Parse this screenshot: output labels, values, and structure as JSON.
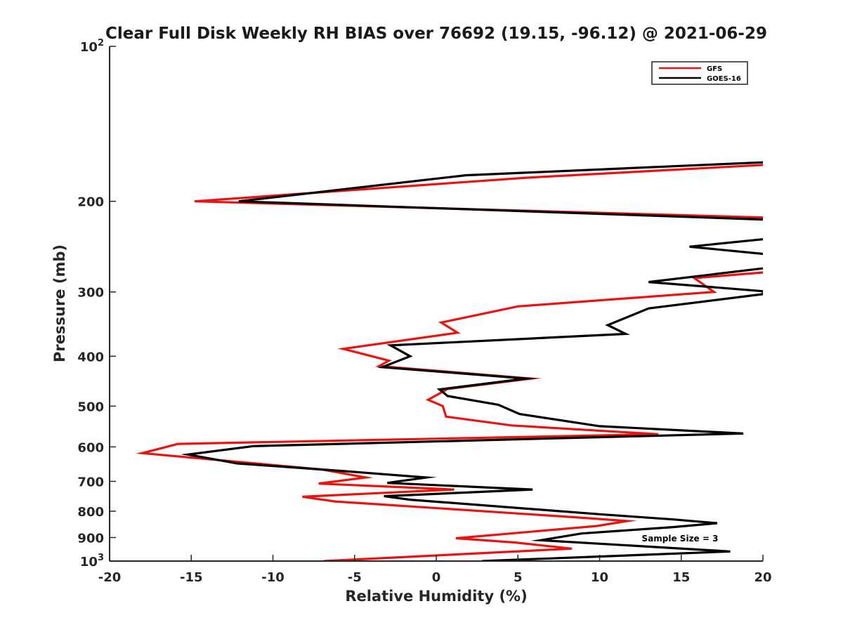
{
  "chart_data": {
    "type": "line",
    "title": "Clear Full Disk Weekly RH BIAS over 76692 (19.15, -96.12) @ 2021-06-29",
    "xlabel": "Relative Humidity (%)",
    "ylabel": "Pressure (mb)",
    "xlim": [
      -20,
      20
    ],
    "ylim": [
      100,
      1000
    ],
    "y_scale": "log",
    "y_direction": "reversed",
    "x_ticks": [
      {
        "value": -20,
        "label": "-20"
      },
      {
        "value": -15,
        "label": "-15"
      },
      {
        "value": -10,
        "label": "-10"
      },
      {
        "value": -5,
        "label": "-5"
      },
      {
        "value": 0,
        "label": "0"
      },
      {
        "value": 5,
        "label": "5"
      },
      {
        "value": 10,
        "label": "10"
      },
      {
        "value": 15,
        "label": "15"
      },
      {
        "value": 20,
        "label": "20"
      }
    ],
    "y_ticks": [
      {
        "value": 100,
        "base": "10",
        "exp": "2"
      },
      {
        "value": 200,
        "label": "200"
      },
      {
        "value": 300,
        "label": "300"
      },
      {
        "value": 400,
        "label": "400"
      },
      {
        "value": 500,
        "label": "500"
      },
      {
        "value": 600,
        "label": "600"
      },
      {
        "value": 700,
        "label": "700"
      },
      {
        "value": 800,
        "label": "800"
      },
      {
        "value": 900,
        "label": "900"
      },
      {
        "value": 1000,
        "base": "10",
        "exp": "3"
      }
    ],
    "legend": {
      "position": "top-right",
      "entries": [
        "GFS",
        "GOES-16"
      ]
    },
    "annotation": "Sample Size = 3",
    "series": [
      {
        "name": "GFS",
        "color": "#e8140f",
        "segments": [
          [
            {
              "x": 20.0,
              "p": 170
            },
            {
              "x": 5.5,
              "p": 180
            },
            {
              "x": -14.8,
              "p": 200
            },
            {
              "x": 20.0,
              "p": 215
            }
          ],
          [
            {
              "x": 20.0,
              "p": 275
            },
            {
              "x": 15.8,
              "p": 282
            },
            {
              "x": 17.0,
              "p": 300
            },
            {
              "x": 5.0,
              "p": 320
            },
            {
              "x": 0.3,
              "p": 344
            },
            {
              "x": 1.3,
              "p": 360
            },
            {
              "x": -5.7,
              "p": 387
            },
            {
              "x": -2.9,
              "p": 408
            },
            {
              "x": -3.5,
              "p": 418
            },
            {
              "x": 5.8,
              "p": 442
            },
            {
              "x": 0.7,
              "p": 463
            },
            {
              "x": -0.5,
              "p": 486
            },
            {
              "x": 0.4,
              "p": 500
            },
            {
              "x": 0.6,
              "p": 524
            },
            {
              "x": 4.6,
              "p": 545
            },
            {
              "x": 13.6,
              "p": 567
            },
            {
              "x": -15.8,
              "p": 592
            },
            {
              "x": -18.0,
              "p": 617
            },
            {
              "x": -7.0,
              "p": 664
            },
            {
              "x": -4.3,
              "p": 688
            },
            {
              "x": -7.2,
              "p": 707
            },
            {
              "x": 1.1,
              "p": 726
            },
            {
              "x": -8.2,
              "p": 750
            },
            {
              "x": -6.2,
              "p": 766
            },
            {
              "x": 8.5,
              "p": 822
            },
            {
              "x": 11.7,
              "p": 836
            },
            {
              "x": 9.8,
              "p": 855
            },
            {
              "x": 1.2,
              "p": 903
            },
            {
              "x": 4.8,
              "p": 920
            },
            {
              "x": 8.3,
              "p": 946
            },
            {
              "x": -6.9,
              "p": 1000
            }
          ]
        ]
      },
      {
        "name": "GOES-16",
        "color": "#000000",
        "segments": [
          [
            {
              "x": 20.0,
              "p": 168
            },
            {
              "x": 1.8,
              "p": 178
            },
            {
              "x": -12.1,
              "p": 200
            },
            {
              "x": 20.0,
              "p": 217
            }
          ],
          [
            {
              "x": 20.0,
              "p": 237
            },
            {
              "x": 15.5,
              "p": 245
            },
            {
              "x": 20.0,
              "p": 253
            }
          ],
          [
            {
              "x": 20.0,
              "p": 270
            },
            {
              "x": 13.0,
              "p": 287
            },
            {
              "x": 20.0,
              "p": 299
            },
            {
              "x": 20.0,
              "p": 303
            },
            {
              "x": 13.0,
              "p": 323
            },
            {
              "x": 10.5,
              "p": 348
            },
            {
              "x": 11.6,
              "p": 362
            },
            {
              "x": -2.8,
              "p": 381
            },
            {
              "x": -1.6,
              "p": 400
            },
            {
              "x": -3.3,
              "p": 420
            },
            {
              "x": 5.5,
              "p": 442
            },
            {
              "x": 0.2,
              "p": 464
            },
            {
              "x": 0.7,
              "p": 478
            },
            {
              "x": 3.8,
              "p": 497
            },
            {
              "x": 5.1,
              "p": 518
            },
            {
              "x": 10.0,
              "p": 547
            },
            {
              "x": 18.8,
              "p": 565
            },
            {
              "x": -11.2,
              "p": 598
            },
            {
              "x": -15.2,
              "p": 621
            },
            {
              "x": -12.2,
              "p": 646
            },
            {
              "x": -5.8,
              "p": 668
            },
            {
              "x": -0.6,
              "p": 688
            },
            {
              "x": -3.0,
              "p": 705
            },
            {
              "x": 5.9,
              "p": 726
            },
            {
              "x": -3.2,
              "p": 748
            },
            {
              "x": -1.6,
              "p": 760
            },
            {
              "x": 10.0,
              "p": 811
            },
            {
              "x": 14.5,
              "p": 830
            },
            {
              "x": 17.2,
              "p": 844
            },
            {
              "x": 14.5,
              "p": 859
            },
            {
              "x": 8.9,
              "p": 884
            },
            {
              "x": 6.4,
              "p": 911
            },
            {
              "x": 18.0,
              "p": 958
            },
            {
              "x": 2.8,
              "p": 1000
            }
          ]
        ]
      }
    ]
  }
}
